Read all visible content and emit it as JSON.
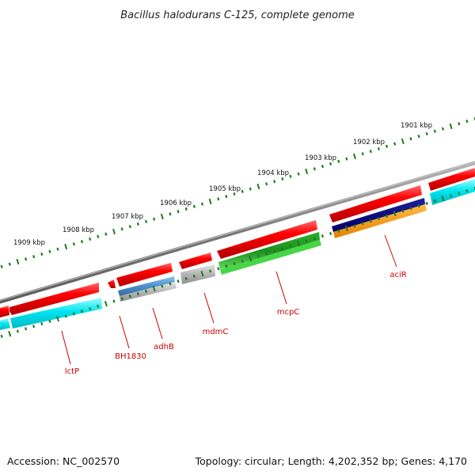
{
  "title": "Bacillus halodurans C-125, complete genome",
  "accession": "Accession: NC_002570",
  "topology": "Topology: circular; Length: 4,202,352 bp; Genes: 4,170",
  "scale_labels": [
    "1901 kbp",
    "1902 kbp",
    "1903 kbp",
    "1904 kbp",
    "1905 kbp",
    "1906 kbp",
    "1907 kbp",
    "1908 kbp",
    "1909 kbp"
  ],
  "gene_labels": [
    "lctP",
    "BH1830",
    "adhB",
    "mdmC",
    "mcpC",
    "aciR"
  ],
  "colors": {
    "backbone": "#7a7a7a",
    "gene": "#ee0000",
    "cog_cyan": "#00e5f0",
    "cog_steel": "#4d8fcc",
    "cog_gray": "#a9a9a9",
    "cog_green": "#1fae1f",
    "cog_navy": "#000080",
    "cog_orange": "#ff9900",
    "tick": "#1f7a1f",
    "label": "#cc0000"
  }
}
